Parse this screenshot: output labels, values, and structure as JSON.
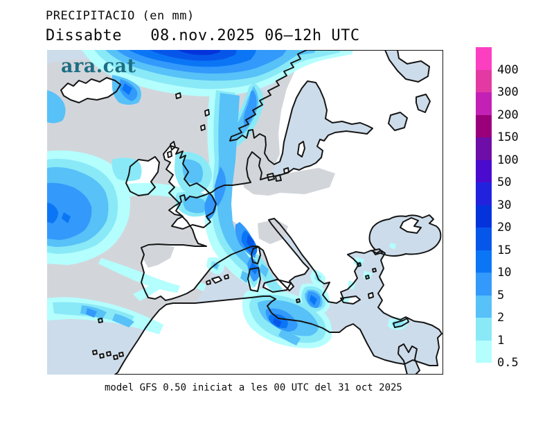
{
  "header": {
    "title": "PRECIPITACIO (en mm)",
    "subtitle": "Dissabte   08.nov.2025 06–12h UTC"
  },
  "watermark": {
    "text": "ara.cat",
    "color": "#1e6e84"
  },
  "footer": {
    "caption": "model GFS 0.50 iniciat a les 00 UTC del 31 oct 2025"
  },
  "legend": {
    "unit": "mm",
    "entries": [
      {
        "label": "400",
        "color": "#fb3fc0"
      },
      {
        "label": "300",
        "color": "#e23aa2"
      },
      {
        "label": "200",
        "color": "#c320b6"
      },
      {
        "label": "150",
        "color": "#9a0079"
      },
      {
        "label": "100",
        "color": "#6e0da8"
      },
      {
        "label": "50",
        "color": "#4a0bce"
      },
      {
        "label": "30",
        "color": "#2222de"
      },
      {
        "label": "20",
        "color": "#0433db"
      },
      {
        "label": "15",
        "color": "#0756ea"
      },
      {
        "label": "10",
        "color": "#0b76f5"
      },
      {
        "label": "5",
        "color": "#3399fb"
      },
      {
        "label": "2",
        "color": "#57c1f8"
      },
      {
        "label": "1",
        "color": "#8ae9f7"
      },
      {
        "label": "0.5",
        "color": "#b4fefe"
      }
    ]
  },
  "map": {
    "colors": {
      "sea": "#cddcea",
      "land": "#ffffff",
      "coast": "#151515",
      "veil": "#d2d6db"
    },
    "region": "Europe",
    "model": "GFS 0.50",
    "valid": "08.nov.2025 06-12h UTC"
  }
}
